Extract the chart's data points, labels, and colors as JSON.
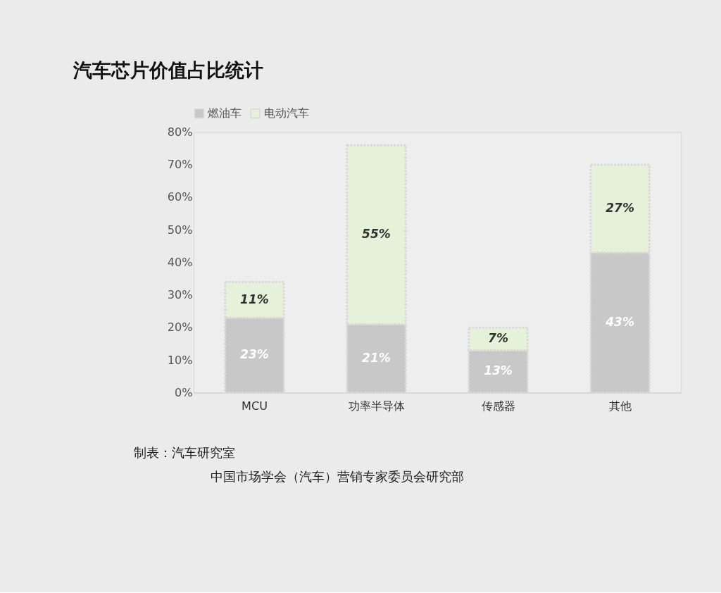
{
  "chart_data": {
    "type": "bar",
    "title": "汽车芯片价值占比统计",
    "categories": [
      "MCU",
      "功率半导体",
      "传感器",
      "其他"
    ],
    "stacked": true,
    "series": [
      {
        "name": "燃油车",
        "color": "#c8c8c8",
        "values": [
          23,
          21,
          13,
          43
        ],
        "value_labels": [
          "23%",
          "21%",
          "13%",
          "43%"
        ]
      },
      {
        "name": "电动汽车",
        "color": "#e5f1d8",
        "values": [
          11,
          55,
          7,
          27
        ],
        "value_labels": [
          "11%",
          "55%",
          "7%",
          "27%"
        ]
      }
    ],
    "ylim": [
      0,
      80
    ],
    "yticks": [
      {
        "value": 0,
        "label": "0%"
      },
      {
        "value": 10,
        "label": "10%"
      },
      {
        "value": 20,
        "label": "20%"
      },
      {
        "value": 30,
        "label": "30%"
      },
      {
        "value": 40,
        "label": "40%"
      },
      {
        "value": 50,
        "label": "50%"
      },
      {
        "value": 60,
        "label": "60%"
      },
      {
        "value": 70,
        "label": "70%"
      },
      {
        "value": 80,
        "label": "80%"
      }
    ],
    "grid": false,
    "legend": "top",
    "annotations": [
      "制表：汽车研究室",
      "中国市场学会（汽车）营销专家委员会研究部"
    ]
  }
}
